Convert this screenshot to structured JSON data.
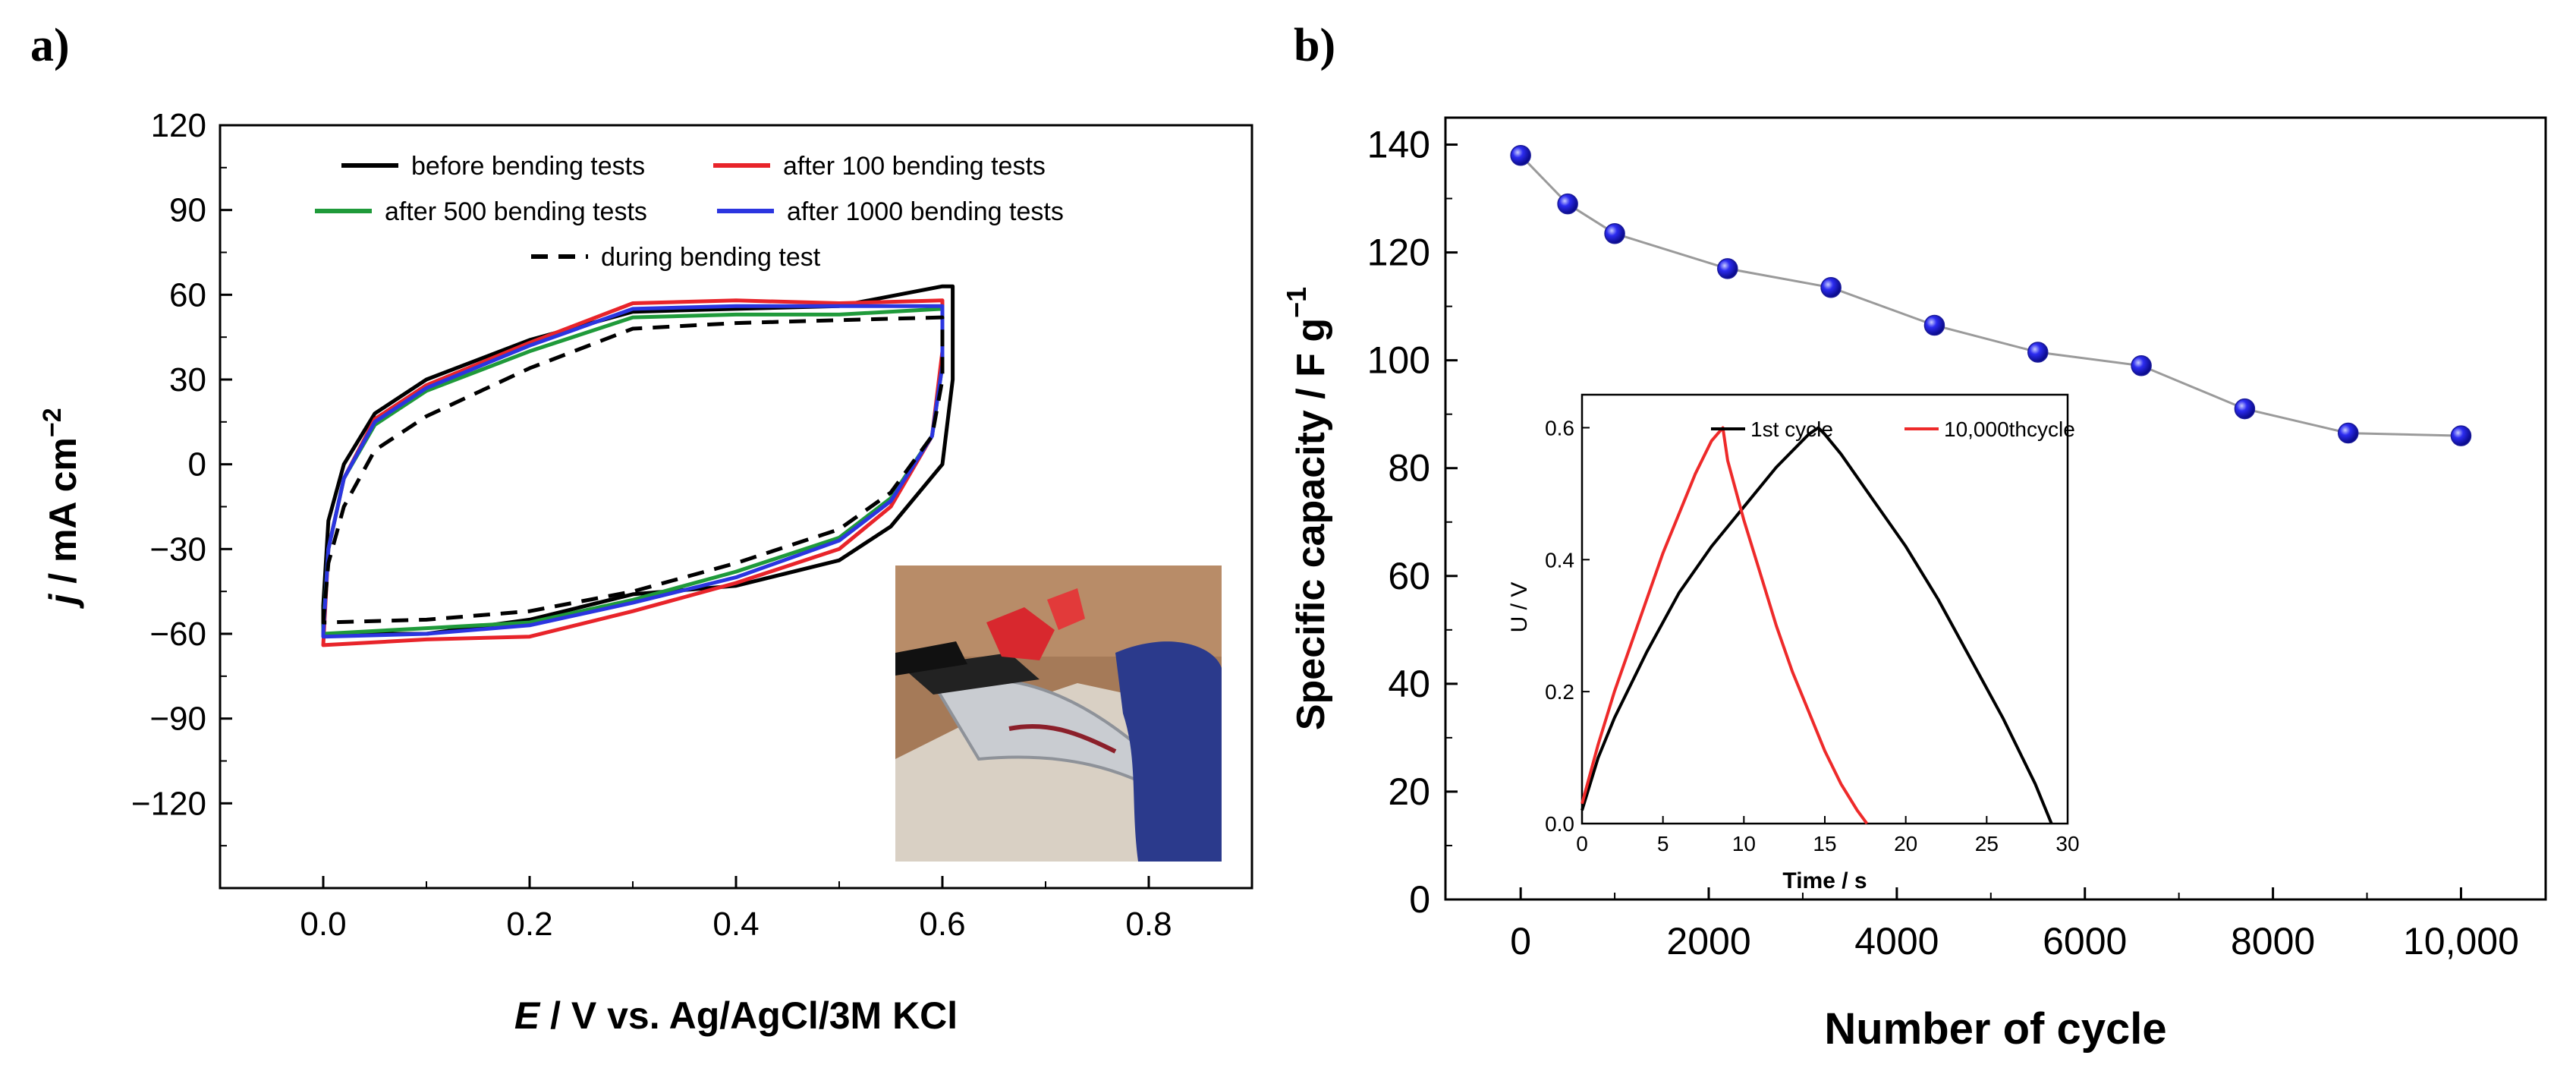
{
  "panels": {
    "a": {
      "label": "a)"
    },
    "b": {
      "label": "b)"
    }
  },
  "chart_data": [
    {
      "id": "a",
      "type": "line",
      "xlim": [
        -0.1,
        0.9
      ],
      "ylim": [
        -150,
        120
      ],
      "xticks": [
        0.0,
        0.2,
        0.4,
        0.6,
        0.8
      ],
      "xtick_labels": [
        "0.0",
        "0.2",
        "0.4",
        "0.6",
        "0.8"
      ],
      "yticks": [
        -120,
        -90,
        -60,
        -30,
        0,
        30,
        60,
        90,
        120
      ],
      "ytick_labels": [
        "−120",
        "−90",
        "−60",
        "−30",
        "0",
        "30",
        "60",
        "90",
        "120"
      ],
      "xlabel": {
        "italic": "E",
        "rest": " / V vs. Ag/AgCl/3M KCl"
      },
      "ylabel": {
        "italic": "j",
        "rest": " / mA cm",
        "sup": "−2"
      },
      "legend": {
        "placement": "top-center"
      },
      "grid": false,
      "inset_photo": "photo of flexible electrode being bent (bottom-right)",
      "series": [
        {
          "name": "before bending tests",
          "color": "#000000",
          "dash": false,
          "upper": [
            [
              0.6,
              63
            ],
            [
              0.5,
              56
            ],
            [
              0.4,
              55
            ],
            [
              0.3,
              54
            ],
            [
              0.2,
              44
            ],
            [
              0.1,
              30
            ],
            [
              0.05,
              18
            ],
            [
              0.02,
              0
            ],
            [
              0.005,
              -20
            ],
            [
              0.0,
              -50
            ]
          ],
          "lower": [
            [
              0.0,
              -60
            ],
            [
              0.1,
              -60
            ],
            [
              0.2,
              -55
            ],
            [
              0.3,
              -46
            ],
            [
              0.4,
              -43
            ],
            [
              0.5,
              -34
            ],
            [
              0.55,
              -22
            ],
            [
              0.6,
              0
            ],
            [
              0.61,
              30
            ],
            [
              0.61,
              63
            ]
          ]
        },
        {
          "name": "after 100 bending tests",
          "color": "#e8242a",
          "dash": false,
          "upper": [
            [
              0.6,
              58
            ],
            [
              0.5,
              57
            ],
            [
              0.4,
              58
            ],
            [
              0.3,
              57
            ],
            [
              0.2,
              43
            ],
            [
              0.1,
              28
            ],
            [
              0.05,
              16
            ],
            [
              0.02,
              -5
            ],
            [
              0.005,
              -30
            ],
            [
              0.0,
              -64
            ]
          ],
          "lower": [
            [
              0.0,
              -64
            ],
            [
              0.1,
              -62
            ],
            [
              0.2,
              -61
            ],
            [
              0.3,
              -52
            ],
            [
              0.4,
              -42
            ],
            [
              0.5,
              -30
            ],
            [
              0.55,
              -15
            ],
            [
              0.59,
              10
            ],
            [
              0.6,
              40
            ],
            [
              0.6,
              58
            ]
          ]
        },
        {
          "name": "after 500 bending tests",
          "color": "#1f9a3a",
          "dash": false,
          "upper": [
            [
              0.6,
              55
            ],
            [
              0.5,
              53
            ],
            [
              0.4,
              53
            ],
            [
              0.3,
              52
            ],
            [
              0.2,
              40
            ],
            [
              0.1,
              26
            ],
            [
              0.05,
              14
            ],
            [
              0.02,
              -5
            ],
            [
              0.005,
              -30
            ],
            [
              0.0,
              -58
            ]
          ],
          "lower": [
            [
              0.0,
              -60
            ],
            [
              0.1,
              -58
            ],
            [
              0.2,
              -56
            ],
            [
              0.3,
              -48
            ],
            [
              0.4,
              -38
            ],
            [
              0.5,
              -26
            ],
            [
              0.55,
              -12
            ],
            [
              0.59,
              10
            ],
            [
              0.6,
              35
            ],
            [
              0.6,
              55
            ]
          ]
        },
        {
          "name": "after 1000 bending tests",
          "color": "#2b35e0",
          "dash": false,
          "upper": [
            [
              0.6,
              56
            ],
            [
              0.5,
              56
            ],
            [
              0.4,
              56
            ],
            [
              0.3,
              55
            ],
            [
              0.2,
              42
            ],
            [
              0.1,
              27
            ],
            [
              0.05,
              15
            ],
            [
              0.02,
              -5
            ],
            [
              0.005,
              -30
            ],
            [
              0.0,
              -60
            ]
          ],
          "lower": [
            [
              0.0,
              -61
            ],
            [
              0.1,
              -60
            ],
            [
              0.2,
              -57
            ],
            [
              0.3,
              -49
            ],
            [
              0.4,
              -40
            ],
            [
              0.5,
              -27
            ],
            [
              0.55,
              -13
            ],
            [
              0.59,
              10
            ],
            [
              0.6,
              35
            ],
            [
              0.6,
              56
            ]
          ]
        },
        {
          "name": "during bending test",
          "color": "#000000",
          "dash": true,
          "upper": [
            [
              0.6,
              52
            ],
            [
              0.5,
              51
            ],
            [
              0.4,
              50
            ],
            [
              0.3,
              48
            ],
            [
              0.2,
              34
            ],
            [
              0.1,
              17
            ],
            [
              0.05,
              5
            ],
            [
              0.02,
              -15
            ],
            [
              0.005,
              -35
            ],
            [
              0.0,
              -56
            ]
          ],
          "lower": [
            [
              0.0,
              -56
            ],
            [
              0.1,
              -55
            ],
            [
              0.2,
              -52
            ],
            [
              0.3,
              -45
            ],
            [
              0.4,
              -35
            ],
            [
              0.5,
              -23
            ],
            [
              0.55,
              -10
            ],
            [
              0.59,
              10
            ],
            [
              0.6,
              30
            ],
            [
              0.6,
              52
            ]
          ]
        }
      ]
    },
    {
      "id": "b",
      "type": "line",
      "xlim": [
        -800,
        10900
      ],
      "ylim": [
        0,
        145
      ],
      "xticks": [
        0,
        2000,
        4000,
        6000,
        8000,
        10000
      ],
      "xtick_labels": [
        "0",
        "2000",
        "4000",
        "6000",
        "8000",
        "10,000"
      ],
      "yticks": [
        0,
        20,
        40,
        60,
        80,
        100,
        120,
        140
      ],
      "ytick_labels": [
        "0",
        "20",
        "40",
        "60",
        "80",
        "100",
        "120",
        "140"
      ],
      "xlabel": "Number of cycle",
      "ylabel": {
        "text": "Specific capacity / F g",
        "sup": "−1"
      },
      "grid": false,
      "series": [
        {
          "name": "",
          "marker_color": "#2c2cf0",
          "line_color": "#9a9a9a",
          "x": [
            0,
            500,
            1000,
            2200,
            3300,
            4400,
            5500,
            6600,
            7700,
            8800,
            10000
          ],
          "y": [
            138,
            129,
            123.5,
            117,
            113.5,
            106.5,
            101.5,
            99,
            91,
            86.5,
            86
          ]
        }
      ],
      "inset": {
        "type": "line",
        "xlim": [
          0,
          30
        ],
        "ylim": [
          0,
          0.65
        ],
        "xticks": [
          0,
          5,
          10,
          15,
          20,
          25,
          30
        ],
        "xtick_labels": [
          "0",
          "5",
          "10",
          "15",
          "20",
          "25",
          "30"
        ],
        "yticks": [
          0,
          0.2,
          0.4,
          0.6
        ],
        "ytick_labels": [
          "0.0",
          "0.2",
          "0.4",
          "0.6"
        ],
        "xlabel": "Time / s",
        "ylabel": "U / V",
        "legend": {
          "placement": "top-right"
        },
        "series": [
          {
            "name": "1st cycle",
            "color": "#000000",
            "charge": [
              [
                0,
                0.02
              ],
              [
                1,
                0.1
              ],
              [
                2,
                0.16
              ],
              [
                4,
                0.26
              ],
              [
                6,
                0.35
              ],
              [
                8,
                0.42
              ],
              [
                10,
                0.48
              ],
              [
                12,
                0.54
              ],
              [
                14,
                0.59
              ],
              [
                14.6,
                0.6
              ]
            ],
            "discharge": [
              [
                14.6,
                0.6
              ],
              [
                15,
                0.59
              ],
              [
                16,
                0.56
              ],
              [
                18,
                0.49
              ],
              [
                20,
                0.42
              ],
              [
                22,
                0.34
              ],
              [
                24,
                0.25
              ],
              [
                26,
                0.16
              ],
              [
                28,
                0.06
              ],
              [
                29,
                0.0
              ]
            ]
          },
          {
            "name": "10,000thcycle",
            "color": "#ee2a2a",
            "charge": [
              [
                0,
                0.03
              ],
              [
                1,
                0.12
              ],
              [
                2,
                0.2
              ],
              [
                3,
                0.27
              ],
              [
                4,
                0.34
              ],
              [
                5,
                0.41
              ],
              [
                6,
                0.47
              ],
              [
                7,
                0.53
              ],
              [
                8,
                0.58
              ],
              [
                8.7,
                0.6
              ]
            ],
            "discharge": [
              [
                8.7,
                0.6
              ],
              [
                9,
                0.55
              ],
              [
                10,
                0.46
              ],
              [
                11,
                0.38
              ],
              [
                12,
                0.3
              ],
              [
                13,
                0.23
              ],
              [
                14,
                0.17
              ],
              [
                15,
                0.11
              ],
              [
                16,
                0.06
              ],
              [
                17,
                0.02
              ],
              [
                17.6,
                0.0
              ]
            ]
          }
        ]
      }
    }
  ]
}
